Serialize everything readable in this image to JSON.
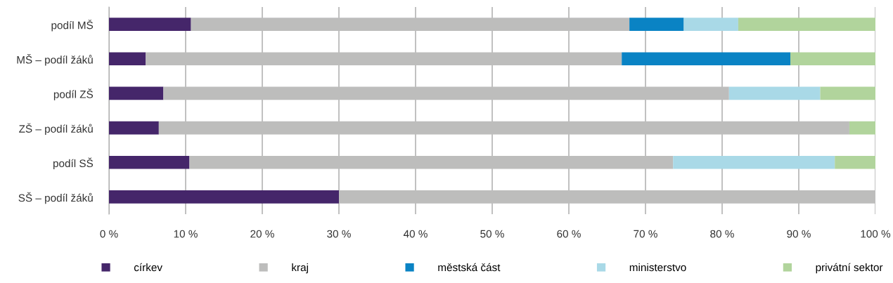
{
  "chart_data": {
    "type": "bar",
    "orientation": "horizontal",
    "stacked": true,
    "categories": [
      "podíl MŠ",
      "MŠ – podíl žáků",
      "podíl ZŠ",
      "ZŠ – podíl žáků",
      "podíl SŠ",
      "SŠ – podíl žáků"
    ],
    "series": [
      {
        "name": "církev",
        "color": "#45266a",
        "values": [
          10.7,
          4.8,
          7.1,
          6.5,
          10.5,
          30.0
        ]
      },
      {
        "name": "kraj",
        "color": "#bdbdbc",
        "values": [
          57.2,
          62.1,
          73.8,
          90.1,
          63.1,
          70.0
        ]
      },
      {
        "name": "městská část",
        "color": "#0a83c4",
        "values": [
          7.1,
          22.0,
          0,
          0,
          0,
          0
        ]
      },
      {
        "name": "ministerstvo",
        "color": "#a9d9e7",
        "values": [
          7.1,
          0,
          11.9,
          0,
          21.1,
          0
        ]
      },
      {
        "name": "privátní sektor",
        "color": "#b1d49c",
        "values": [
          17.9,
          11.1,
          7.2,
          3.4,
          5.3,
          0
        ]
      }
    ],
    "xlim": [
      0,
      100
    ],
    "xticks": [
      {
        "value": 0,
        "label": "0 %"
      },
      {
        "value": 10,
        "label": "10 %"
      },
      {
        "value": 20,
        "label": "20 %"
      },
      {
        "value": 30,
        "label": "30 %"
      },
      {
        "value": 40,
        "label": "40 %"
      },
      {
        "value": 50,
        "label": "50 %"
      },
      {
        "value": 60,
        "label": "60 %"
      },
      {
        "value": 70,
        "label": "70 %"
      },
      {
        "value": 80,
        "label": "80 %"
      },
      {
        "value": 90,
        "label": "90 %"
      },
      {
        "value": 100,
        "label": "100 %"
      }
    ],
    "grid": "x",
    "legend": "bottom"
  }
}
